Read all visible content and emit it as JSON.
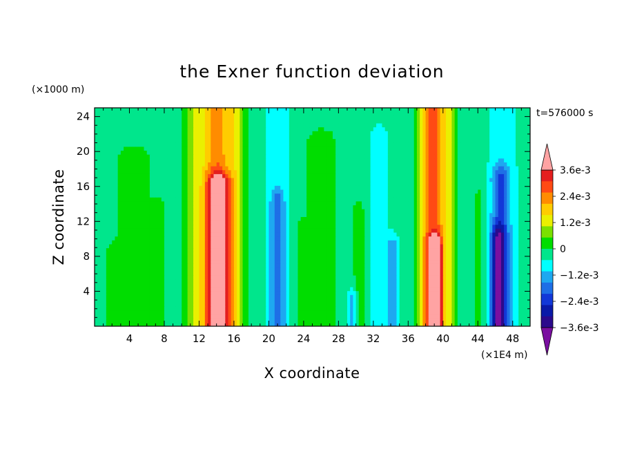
{
  "chart_data": {
    "type": "heatmap",
    "title": "the Exner function deviation",
    "xlabel": "X coordinate",
    "ylabel": "Z coordinate",
    "x_unit": "(×1E4 m)",
    "y_unit": "(×1000 m)",
    "time_label": "t=576000 s",
    "xlim": [
      0,
      50
    ],
    "ylim": [
      0,
      25
    ],
    "x_ticks": [
      4,
      8,
      12,
      16,
      20,
      24,
      28,
      32,
      36,
      40,
      44,
      48
    ],
    "y_ticks": [
      4,
      8,
      12,
      16,
      20,
      24
    ],
    "colorbar": {
      "levels": [
        -0.0042,
        -0.0036,
        -0.003,
        -0.0024,
        -0.0018,
        -0.0012,
        -0.0006,
        0,
        0.0006,
        0.0012,
        0.0018,
        0.0024,
        0.003,
        0.0036,
        0.0042
      ],
      "colors": [
        "#7a0fa0",
        "#2b0a8c",
        "#0a1aa8",
        "#1238d8",
        "#1e6fe6",
        "#1ea8f0",
        "#00ffff",
        "#00e68c",
        "#00dd00",
        "#7be000",
        "#eaf000",
        "#ffcc00",
        "#ff8c00",
        "#ff4a14",
        "#e41e1e",
        "#ffa3a3"
      ],
      "tick_labels": [
        "3.6e-3",
        "2.4e-3",
        "1.2e-3",
        "0",
        "−1.2e-3",
        "−2.4e-3",
        "−3.6e-3"
      ],
      "tick_values": [
        0.0036,
        0.0024,
        0.0012,
        0,
        -0.0012,
        -0.0024,
        -0.0036
      ]
    },
    "background_value": -0.0002,
    "features": [
      {
        "x": 14.0,
        "z0": 0,
        "z1": 25,
        "width": 2.1,
        "value": 0.003
      },
      {
        "x": 14.2,
        "z0": 0,
        "z1": 16,
        "width": 1.3,
        "value": 0.0036
      },
      {
        "x": 11.2,
        "z0": 0,
        "z1": 25,
        "width": 1.0,
        "value": 0.0007
      },
      {
        "x": 16.3,
        "z0": 0,
        "z1": 25,
        "width": 0.9,
        "value": 0.0008
      },
      {
        "x": 39.0,
        "z0": 0,
        "z1": 25,
        "width": 1.3,
        "value": 0.0034
      },
      {
        "x": 39.1,
        "z0": 0,
        "z1": 9,
        "width": 0.7,
        "value": 0.004
      },
      {
        "x": 37.6,
        "z0": 0,
        "z1": 25,
        "width": 0.9,
        "value": 0.001
      },
      {
        "x": 40.7,
        "z0": 0,
        "z1": 25,
        "width": 0.8,
        "value": 0.001
      },
      {
        "x": 4.5,
        "z0": 0,
        "z1": 19,
        "width": 1.8,
        "value": 0.0004
      },
      {
        "x": 7.4,
        "z0": 0,
        "z1": 13,
        "width": 0.7,
        "value": 0.0004
      },
      {
        "x": 26.0,
        "z0": 0,
        "z1": 21,
        "width": 1.6,
        "value": 0.0004
      },
      {
        "x": 30.4,
        "z0": 0,
        "z1": 13,
        "width": 0.7,
        "value": 0.0003
      },
      {
        "x": 23.7,
        "z0": 0,
        "z1": 11,
        "width": 0.5,
        "value": 0.0003
      },
      {
        "x": 44.3,
        "z0": 0,
        "z1": 15,
        "width": 0.8,
        "value": 0.0002
      },
      {
        "x": 2.2,
        "z0": 0,
        "z1": 8,
        "width": 1.0,
        "value": 0.0002
      },
      {
        "x": 21.0,
        "z0": 0,
        "z1": 25,
        "width": 1.7,
        "value": -0.0009
      },
      {
        "x": 21.0,
        "z0": 0,
        "z1": 14,
        "width": 0.8,
        "value": -0.0018
      },
      {
        "x": 32.7,
        "z0": 0,
        "z1": 22,
        "width": 1.3,
        "value": -0.0009
      },
      {
        "x": 34.3,
        "z0": 0,
        "z1": 9,
        "width": 0.7,
        "value": -0.0016
      },
      {
        "x": 29.6,
        "z0": 0,
        "z1": 3,
        "width": 0.5,
        "value": -0.0015
      },
      {
        "x": 46.8,
        "z0": 0,
        "z1": 25,
        "width": 1.8,
        "value": -0.001
      },
      {
        "x": 46.6,
        "z0": 0,
        "z1": 17,
        "width": 1.1,
        "value": -0.0019
      },
      {
        "x": 46.3,
        "z0": 0,
        "z1": 10,
        "width": 0.8,
        "value": -0.0026
      },
      {
        "x": 36.0,
        "z0": 0,
        "z1": 25,
        "width": 0.8,
        "value": -0.0005
      },
      {
        "x": 42.2,
        "z0": 0,
        "z1": 25,
        "width": 0.9,
        "value": -0.0004
      },
      {
        "x": 49.4,
        "z0": 0,
        "z1": 25,
        "width": 0.8,
        "value": -0.0004
      }
    ]
  }
}
